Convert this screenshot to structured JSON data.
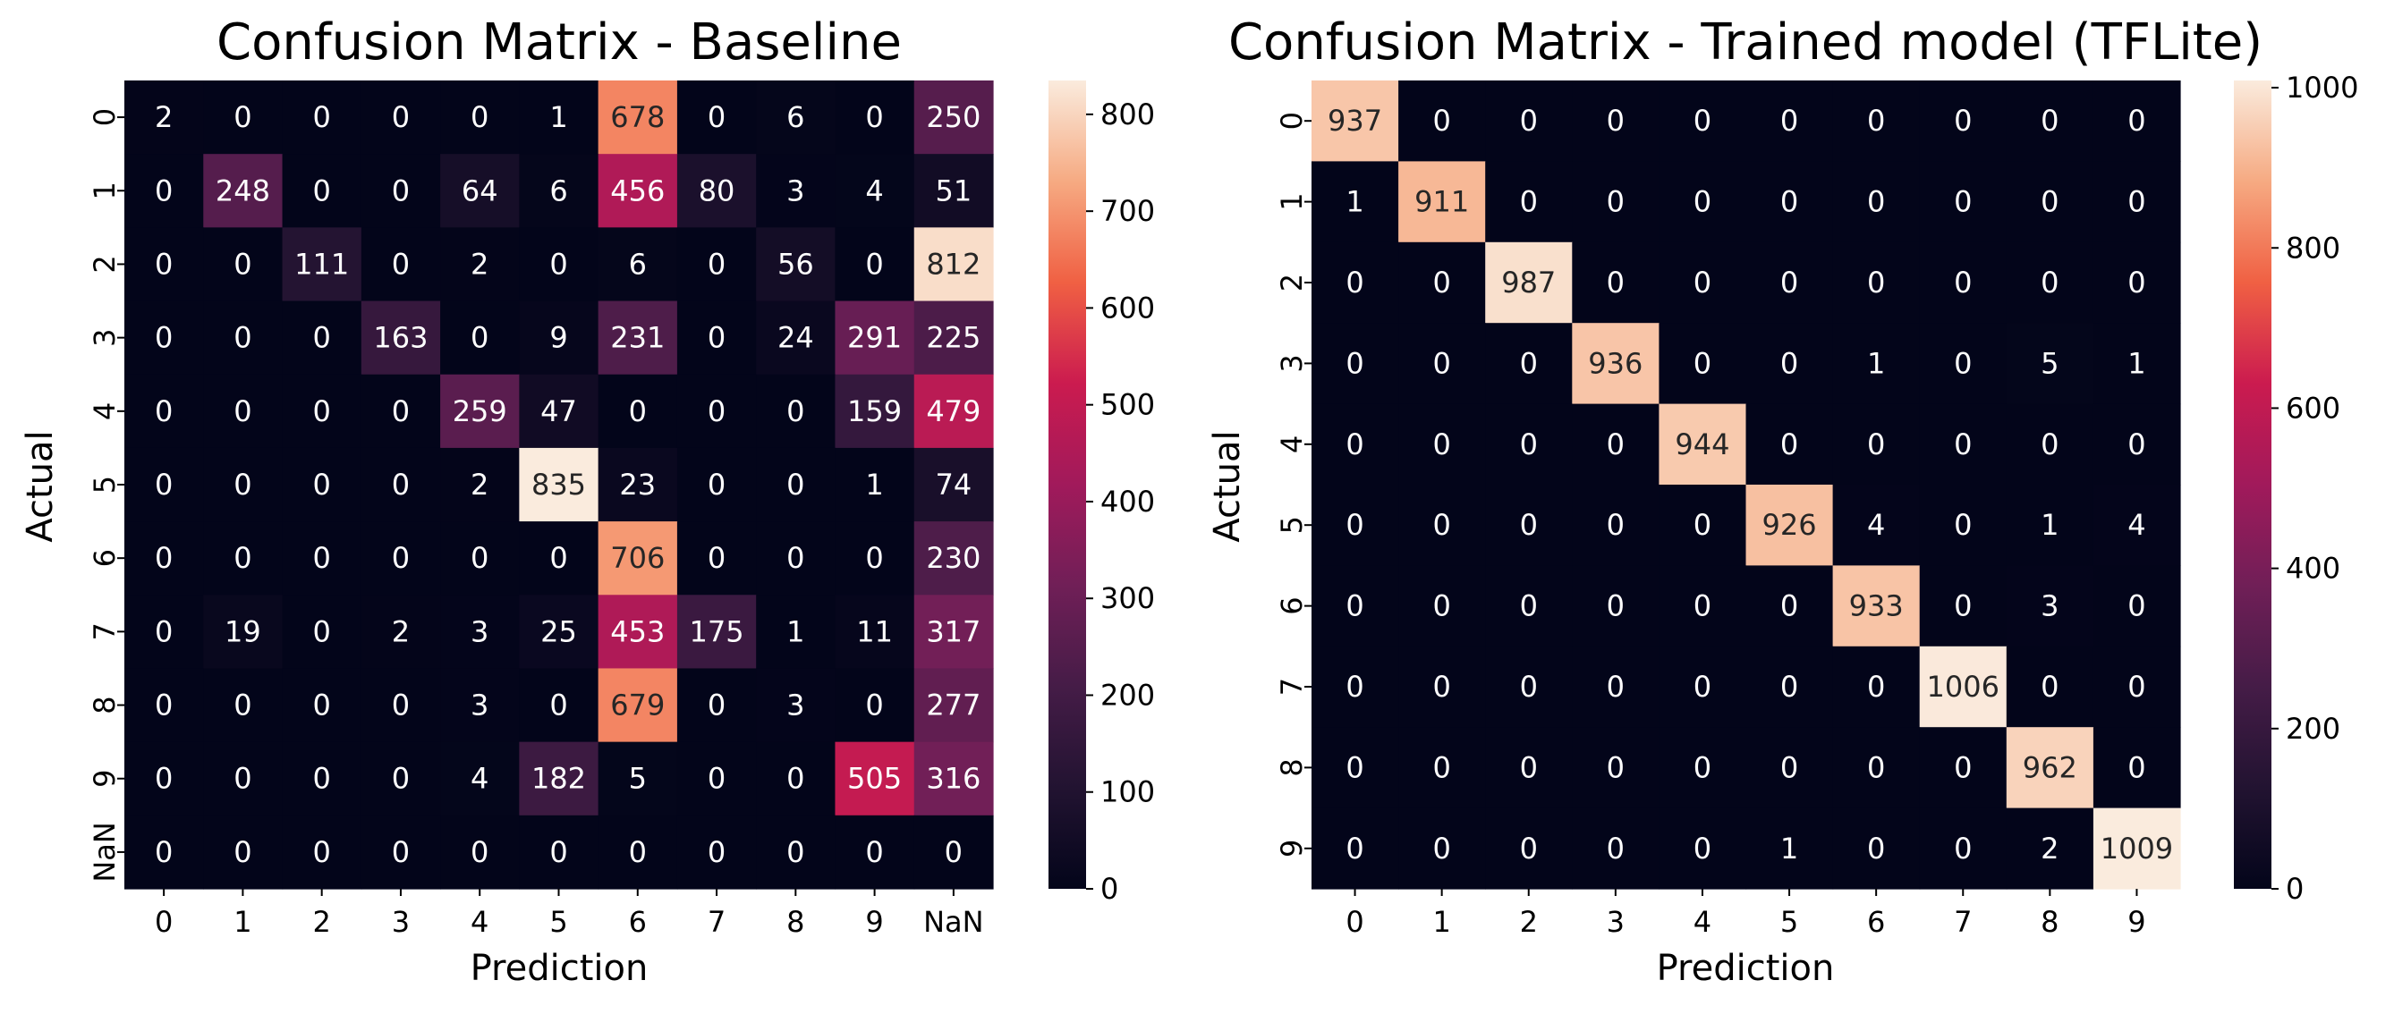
{
  "chart_data": [
    {
      "type": "heatmap",
      "title": "Confusion Matrix - Baseline",
      "xlabel": "Prediction",
      "ylabel": "Actual",
      "x_categories": [
        "0",
        "1",
        "2",
        "3",
        "4",
        "5",
        "6",
        "7",
        "8",
        "9",
        "NaN"
      ],
      "y_categories": [
        "0",
        "1",
        "2",
        "3",
        "4",
        "5",
        "6",
        "7",
        "8",
        "9",
        "NaN"
      ],
      "values": [
        [
          2,
          0,
          0,
          0,
          0,
          1,
          678,
          0,
          6,
          0,
          250
        ],
        [
          0,
          248,
          0,
          0,
          64,
          6,
          456,
          80,
          3,
          4,
          51
        ],
        [
          0,
          0,
          111,
          0,
          2,
          0,
          6,
          0,
          56,
          0,
          812
        ],
        [
          0,
          0,
          0,
          163,
          0,
          9,
          231,
          0,
          24,
          291,
          225
        ],
        [
          0,
          0,
          0,
          0,
          259,
          47,
          0,
          0,
          0,
          159,
          479
        ],
        [
          0,
          0,
          0,
          0,
          2,
          835,
          23,
          0,
          0,
          1,
          74
        ],
        [
          0,
          0,
          0,
          0,
          0,
          0,
          706,
          0,
          0,
          0,
          230
        ],
        [
          0,
          19,
          0,
          2,
          3,
          25,
          453,
          175,
          1,
          11,
          317
        ],
        [
          0,
          0,
          0,
          0,
          3,
          0,
          679,
          0,
          3,
          0,
          277
        ],
        [
          0,
          0,
          0,
          0,
          4,
          182,
          5,
          0,
          0,
          505,
          316
        ],
        [
          0,
          0,
          0,
          0,
          0,
          0,
          0,
          0,
          0,
          0,
          0
        ]
      ],
      "colorbar": {
        "min": 0,
        "max": 835,
        "ticks": [
          0,
          100,
          200,
          300,
          400,
          500,
          600,
          700,
          800
        ]
      },
      "colormap": "rocket",
      "grid": false
    },
    {
      "type": "heatmap",
      "title": "Confusion Matrix - Trained model (TFLite)",
      "xlabel": "Prediction",
      "ylabel": "Actual",
      "x_categories": [
        "0",
        "1",
        "2",
        "3",
        "4",
        "5",
        "6",
        "7",
        "8",
        "9"
      ],
      "y_categories": [
        "0",
        "1",
        "2",
        "3",
        "4",
        "5",
        "6",
        "7",
        "8",
        "9"
      ],
      "values": [
        [
          937,
          0,
          0,
          0,
          0,
          0,
          0,
          0,
          0,
          0
        ],
        [
          1,
          911,
          0,
          0,
          0,
          0,
          0,
          0,
          0,
          0
        ],
        [
          0,
          0,
          987,
          0,
          0,
          0,
          0,
          0,
          0,
          0
        ],
        [
          0,
          0,
          0,
          936,
          0,
          0,
          1,
          0,
          5,
          1
        ],
        [
          0,
          0,
          0,
          0,
          944,
          0,
          0,
          0,
          0,
          0
        ],
        [
          0,
          0,
          0,
          0,
          0,
          926,
          4,
          0,
          1,
          4
        ],
        [
          0,
          0,
          0,
          0,
          0,
          0,
          933,
          0,
          3,
          0
        ],
        [
          0,
          0,
          0,
          0,
          0,
          0,
          0,
          1006,
          0,
          0
        ],
        [
          0,
          0,
          0,
          0,
          0,
          0,
          0,
          0,
          962,
          0
        ],
        [
          0,
          0,
          0,
          0,
          0,
          1,
          0,
          0,
          2,
          1009
        ]
      ],
      "colorbar": {
        "min": 0,
        "max": 1009,
        "ticks": [
          0,
          200,
          400,
          600,
          800,
          1000
        ]
      },
      "colormap": "rocket",
      "grid": false
    }
  ]
}
